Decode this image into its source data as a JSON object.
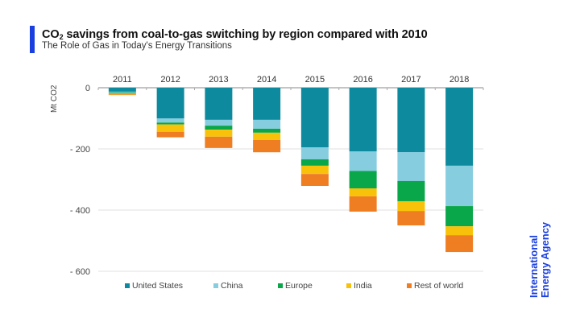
{
  "header": {
    "title_prefix": "CO",
    "title_sub": "2",
    "title_rest": " savings from coal-to-gas switching by region compared with 2010",
    "subtitle": "The Role of Gas in Today's Energy Transitions",
    "accent_color": "#1a3fe0"
  },
  "logo": {
    "line1": "International",
    "line2": "Energy Agency",
    "color": "#1a3fe0"
  },
  "chart_data": {
    "type": "bar",
    "stacked": true,
    "title": "CO2 savings from coal-to-gas switching by region compared with 2010",
    "subtitle": "The Role of Gas in Today's Energy Transitions",
    "xlabel": "",
    "ylabel": "Mt CO2",
    "ylim": [
      -600,
      0
    ],
    "yticks": [
      0,
      -200,
      -400,
      -600
    ],
    "ytick_labels": [
      "0",
      "- 200",
      "- 400",
      "- 600"
    ],
    "categories": [
      "2011",
      "2012",
      "2013",
      "2014",
      "2015",
      "2016",
      "2017",
      "2018"
    ],
    "x_axis_position": "top",
    "grid": true,
    "legend_position": "bottom",
    "series": [
      {
        "name": "United States",
        "color": "#0e8a9e",
        "values": [
          -13,
          -100,
          -105,
          -105,
          -195,
          -208,
          -211,
          -255
        ]
      },
      {
        "name": "China",
        "color": "#86cde0",
        "values": [
          -3,
          -14,
          -19,
          -29,
          -39,
          -64,
          -94,
          -132
        ]
      },
      {
        "name": "Europe",
        "color": "#0aa64a",
        "values": [
          -3,
          -6,
          -13,
          -13,
          -21,
          -57,
          -66,
          -66
        ]
      },
      {
        "name": "India",
        "color": "#f9c20a",
        "values": [
          -3,
          -24,
          -23,
          -24,
          -27,
          -26,
          -32,
          -29
        ]
      },
      {
        "name": "Rest of world",
        "color": "#ef7d22",
        "values": [
          -2,
          -18,
          -37,
          -40,
          -39,
          -50,
          -47,
          -55
        ]
      }
    ]
  }
}
